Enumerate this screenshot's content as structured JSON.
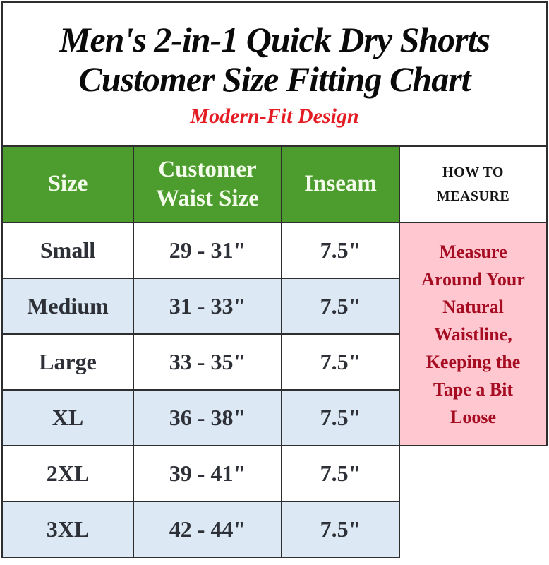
{
  "page": {
    "title_line1": "Men's 2-in-1 Quick Dry Shorts",
    "title_line2": "Customer Size Fitting Chart",
    "subtitle": "Modern-Fit Design"
  },
  "chart_data": {
    "type": "table",
    "title": "Men's 2-in-1 Quick Dry Shorts Customer Size Fitting Chart",
    "subtitle": "Modern-Fit Design",
    "columns": [
      "Size",
      "Customer Waist Size",
      "Inseam",
      "HOW TO MEASURE"
    ],
    "rows": [
      {
        "size": "Small",
        "waist": "29 - 31\"",
        "inseam": "7.5\""
      },
      {
        "size": "Medium",
        "waist": "31 - 33\"",
        "inseam": "7.5\""
      },
      {
        "size": "Large",
        "waist": "33 - 35\"",
        "inseam": "7.5\""
      },
      {
        "size": "XL",
        "waist": "36 - 38\"",
        "inseam": "7.5\""
      },
      {
        "size": "2XL",
        "waist": "39 - 41\"",
        "inseam": "7.5\""
      },
      {
        "size": "3XL",
        "waist": "42 - 44\"",
        "inseam": "7.5\""
      }
    ],
    "measure_note": "Measure Around Your Natural Waistline, Keeping the Tape a Bit Loose",
    "measure_note_rowspan": 4
  },
  "colors": {
    "header_green": "#4c9c2e",
    "header_text": "#f3fbea",
    "row_alt_blue": "#dce9f4",
    "note_pink_bg": "#ffc8d1",
    "note_red_text": "#a60d22",
    "subtitle_red": "#e41d24",
    "border": "#2e2e2e"
  }
}
